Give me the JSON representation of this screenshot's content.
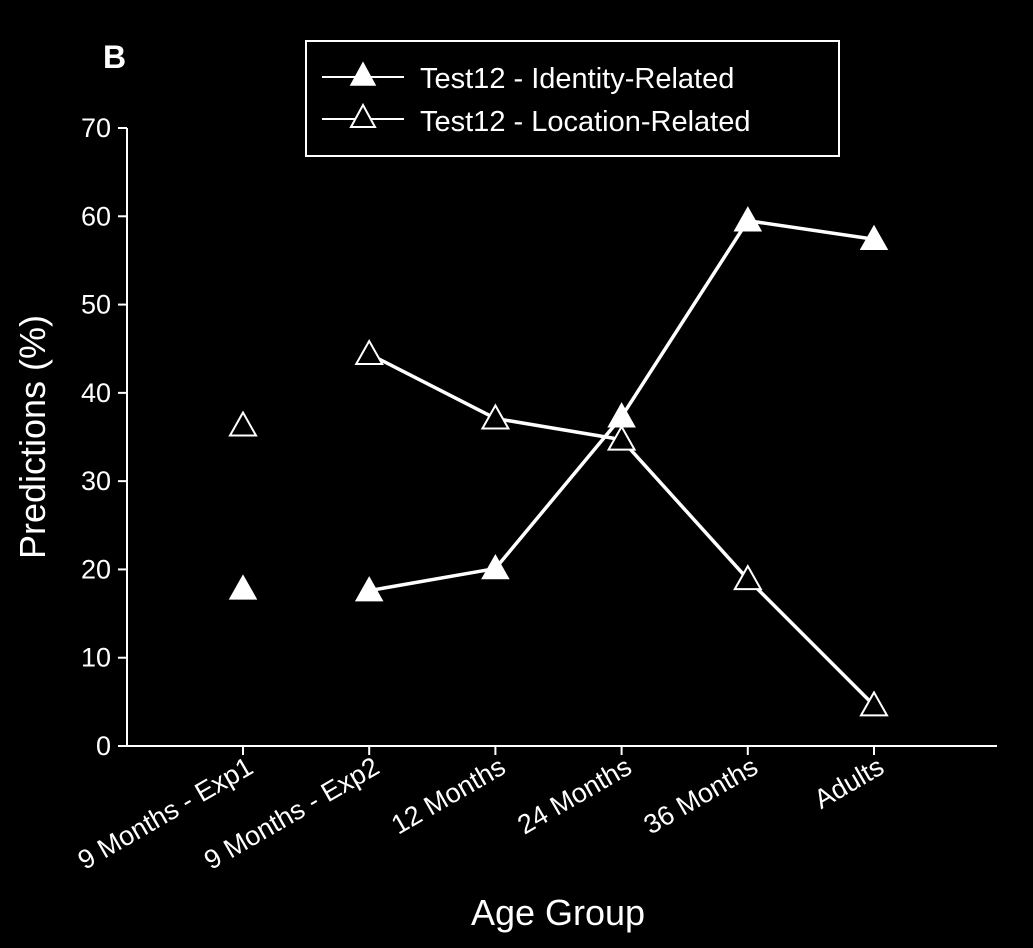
{
  "chart_data": {
    "type": "line",
    "panel_label": "B",
    "xlabel": "Age Group",
    "ylabel": "Predictions (%)",
    "ylim": [
      0,
      70
    ],
    "yticks": [
      0,
      10,
      20,
      30,
      40,
      50,
      60,
      70
    ],
    "categories": [
      "9 Months - Exp1",
      "9 Months - Exp2",
      "12 Months",
      "24 Months",
      "36 Months",
      "Adults"
    ],
    "legend_position": "top-right",
    "grid": false,
    "series": [
      {
        "name": "Test12 - Identity-Related",
        "marker": "filled-triangle",
        "values": [
          17.8,
          17.6,
          20.1,
          37.3,
          59.5,
          57.4
        ],
        "connected_from_index": 1
      },
      {
        "name": "Test12 - Location-Related",
        "marker": "open-triangle",
        "values": [
          36.3,
          44.4,
          37.1,
          34.7,
          18.9,
          4.6
        ],
        "connected_from_index": 1
      }
    ]
  }
}
